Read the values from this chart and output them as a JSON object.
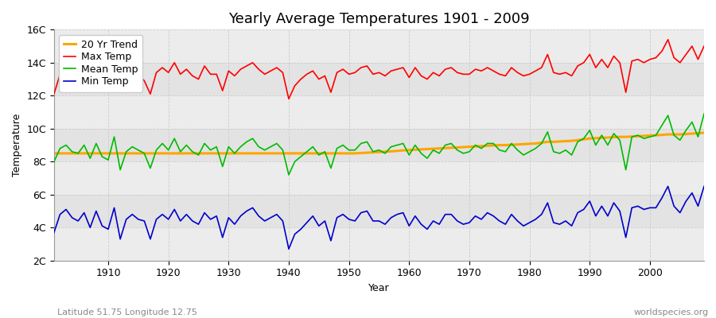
{
  "title": "Yearly Average Temperatures 1901 - 2009",
  "xlabel": "Year",
  "ylabel": "Temperature",
  "lat_lon_label": "Latitude 51.75 Longitude 12.75",
  "watermark": "worldspecies.org",
  "plot_bg_color": "#e8e8e8",
  "ylim": [
    2,
    16
  ],
  "yticks": [
    2,
    4,
    6,
    8,
    10,
    12,
    14,
    16
  ],
  "ytick_labels": [
    "2C",
    "4C",
    "6C",
    "8C",
    "10C",
    "12C",
    "14C",
    "16C"
  ],
  "years": [
    1901,
    1902,
    1903,
    1904,
    1905,
    1906,
    1907,
    1908,
    1909,
    1910,
    1911,
    1912,
    1913,
    1914,
    1915,
    1916,
    1917,
    1918,
    1919,
    1920,
    1921,
    1922,
    1923,
    1924,
    1925,
    1926,
    1927,
    1928,
    1929,
    1930,
    1931,
    1932,
    1933,
    1934,
    1935,
    1936,
    1937,
    1938,
    1939,
    1940,
    1941,
    1942,
    1943,
    1944,
    1945,
    1946,
    1947,
    1948,
    1949,
    1950,
    1951,
    1952,
    1953,
    1954,
    1955,
    1956,
    1957,
    1958,
    1959,
    1960,
    1961,
    1962,
    1963,
    1964,
    1965,
    1966,
    1967,
    1968,
    1969,
    1970,
    1971,
    1972,
    1973,
    1974,
    1975,
    1976,
    1977,
    1978,
    1979,
    1980,
    1981,
    1982,
    1983,
    1984,
    1985,
    1986,
    1987,
    1988,
    1989,
    1990,
    1991,
    1992,
    1993,
    1994,
    1995,
    1996,
    1997,
    1998,
    1999,
    2000,
    2001,
    2002,
    2003,
    2004,
    2005,
    2006,
    2007,
    2008,
    2009
  ],
  "max_temp": [
    12.1,
    13.3,
    13.5,
    13.2,
    13.0,
    13.6,
    13.0,
    13.7,
    13.0,
    12.8,
    14.2,
    12.3,
    13.1,
    13.5,
    13.3,
    12.9,
    12.1,
    13.4,
    13.7,
    13.4,
    14.0,
    13.3,
    13.6,
    13.2,
    13.0,
    13.8,
    13.3,
    13.3,
    12.3,
    13.5,
    13.2,
    13.6,
    13.8,
    14.0,
    13.6,
    13.3,
    13.5,
    13.7,
    13.4,
    11.8,
    12.6,
    13.0,
    13.3,
    13.5,
    13.0,
    13.2,
    12.2,
    13.4,
    13.6,
    13.3,
    13.4,
    13.7,
    13.8,
    13.3,
    13.4,
    13.2,
    13.5,
    13.6,
    13.7,
    13.1,
    13.7,
    13.2,
    13.0,
    13.4,
    13.2,
    13.6,
    13.7,
    13.4,
    13.3,
    13.3,
    13.6,
    13.5,
    13.7,
    13.5,
    13.3,
    13.2,
    13.7,
    13.4,
    13.2,
    13.3,
    13.5,
    13.7,
    14.5,
    13.4,
    13.3,
    13.4,
    13.2,
    13.8,
    14.0,
    14.5,
    13.7,
    14.2,
    13.7,
    14.4,
    14.0,
    12.2,
    14.1,
    14.2,
    14.0,
    14.2,
    14.3,
    14.7,
    15.4,
    14.3,
    14.0,
    14.5,
    15.0,
    14.2,
    15.0
  ],
  "mean_temp": [
    8.0,
    8.8,
    9.0,
    8.6,
    8.5,
    9.0,
    8.2,
    9.1,
    8.3,
    8.1,
    9.5,
    7.5,
    8.6,
    8.9,
    8.7,
    8.5,
    7.6,
    8.7,
    9.1,
    8.7,
    9.4,
    8.6,
    9.0,
    8.6,
    8.4,
    9.1,
    8.7,
    8.9,
    7.7,
    8.9,
    8.5,
    8.9,
    9.2,
    9.4,
    8.9,
    8.7,
    8.9,
    9.1,
    8.7,
    7.2,
    8.0,
    8.3,
    8.6,
    8.9,
    8.4,
    8.6,
    7.6,
    8.8,
    9.0,
    8.7,
    8.7,
    9.1,
    9.2,
    8.6,
    8.7,
    8.5,
    8.9,
    9.0,
    9.1,
    8.4,
    9.0,
    8.5,
    8.2,
    8.7,
    8.5,
    9.0,
    9.1,
    8.7,
    8.5,
    8.6,
    9.0,
    8.8,
    9.1,
    9.1,
    8.7,
    8.6,
    9.1,
    8.7,
    8.4,
    8.6,
    8.8,
    9.1,
    9.8,
    8.6,
    8.5,
    8.7,
    8.4,
    9.2,
    9.4,
    9.9,
    9.0,
    9.6,
    9.0,
    9.7,
    9.3,
    7.5,
    9.5,
    9.6,
    9.4,
    9.5,
    9.6,
    10.2,
    10.8,
    9.6,
    9.3,
    9.9,
    10.4,
    9.5,
    10.9
  ],
  "min_temp": [
    3.7,
    4.8,
    5.1,
    4.6,
    4.4,
    4.9,
    4.0,
    5.0,
    4.1,
    3.9,
    5.2,
    3.3,
    4.5,
    4.8,
    4.5,
    4.4,
    3.3,
    4.5,
    4.8,
    4.5,
    5.1,
    4.4,
    4.8,
    4.4,
    4.2,
    4.9,
    4.5,
    4.7,
    3.4,
    4.6,
    4.2,
    4.7,
    5.0,
    5.2,
    4.7,
    4.4,
    4.6,
    4.8,
    4.4,
    2.7,
    3.6,
    3.9,
    4.3,
    4.7,
    4.1,
    4.4,
    3.2,
    4.6,
    4.8,
    4.5,
    4.4,
    4.9,
    5.0,
    4.4,
    4.4,
    4.2,
    4.6,
    4.8,
    4.9,
    4.1,
    4.7,
    4.2,
    3.9,
    4.4,
    4.2,
    4.8,
    4.8,
    4.4,
    4.2,
    4.3,
    4.7,
    4.5,
    4.9,
    4.7,
    4.4,
    4.2,
    4.8,
    4.4,
    4.1,
    4.3,
    4.5,
    4.8,
    5.5,
    4.3,
    4.2,
    4.4,
    4.1,
    4.9,
    5.1,
    5.6,
    4.7,
    5.3,
    4.7,
    5.5,
    5.0,
    3.4,
    5.2,
    5.3,
    5.1,
    5.2,
    5.2,
    5.8,
    6.5,
    5.3,
    4.9,
    5.6,
    6.1,
    5.3,
    6.5
  ],
  "trend_temp": [
    8.5,
    8.5,
    8.5,
    8.5,
    8.5,
    8.5,
    8.5,
    8.5,
    8.5,
    8.5,
    8.5,
    8.5,
    8.5,
    8.5,
    8.5,
    8.5,
    8.5,
    8.5,
    8.5,
    8.5,
    8.5,
    8.5,
    8.5,
    8.5,
    8.5,
    8.5,
    8.5,
    8.5,
    8.5,
    8.5,
    8.5,
    8.5,
    8.5,
    8.5,
    8.5,
    8.5,
    8.5,
    8.5,
    8.5,
    8.5,
    8.5,
    8.5,
    8.5,
    8.5,
    8.5,
    8.5,
    8.5,
    8.5,
    8.5,
    8.5,
    8.5,
    8.52,
    8.54,
    8.56,
    8.58,
    8.6,
    8.62,
    8.65,
    8.68,
    8.7,
    8.72,
    8.74,
    8.76,
    8.78,
    8.8,
    8.82,
    8.84,
    8.86,
    8.88,
    8.9,
    8.92,
    8.94,
    8.96,
    8.98,
    9.0,
    9.0,
    9.02,
    9.04,
    9.06,
    9.08,
    9.1,
    9.15,
    9.2,
    9.2,
    9.22,
    9.24,
    9.26,
    9.3,
    9.35,
    9.4,
    9.42,
    9.44,
    9.46,
    9.48,
    9.5,
    9.5,
    9.52,
    9.54,
    9.56,
    9.58,
    9.6,
    9.62,
    9.65,
    9.65,
    9.65,
    9.67,
    9.7,
    9.72,
    9.75
  ],
  "max_color": "#ff0000",
  "mean_color": "#00bb00",
  "min_color": "#0000cc",
  "trend_color": "#ffa500",
  "legend_labels": [
    "Max Temp",
    "Mean Temp",
    "Min Temp",
    "20 Yr Trend"
  ],
  "grid_color": "#cccccc",
  "title_fontsize": 13,
  "label_fontsize": 9,
  "tick_fontsize": 9,
  "legend_fontsize": 9,
  "xticks": [
    1910,
    1920,
    1930,
    1940,
    1950,
    1960,
    1970,
    1980,
    1990,
    2000
  ]
}
